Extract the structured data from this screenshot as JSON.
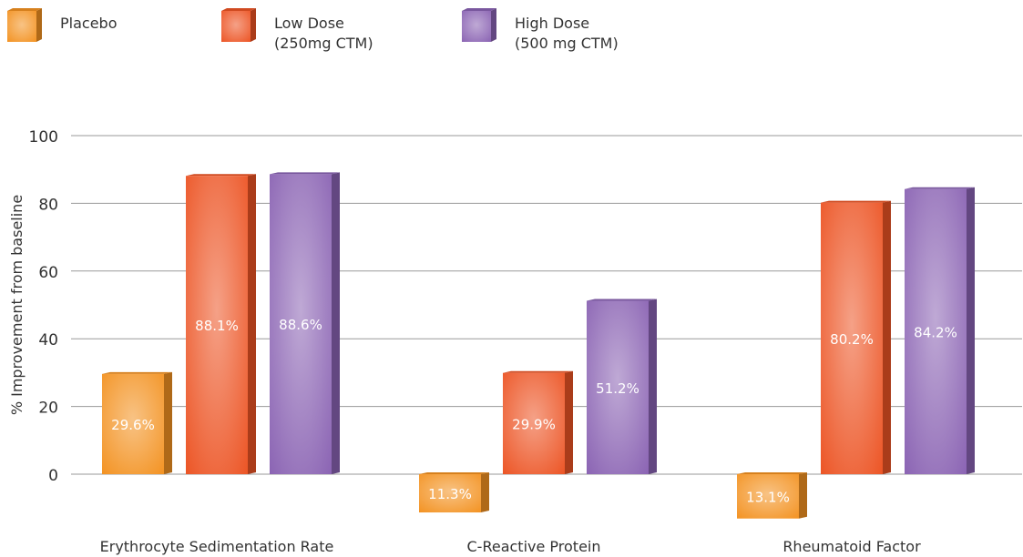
{
  "chart_data": {
    "type": "bar",
    "title": "",
    "ylabel": "% Improvement from baseline",
    "xlabel": "",
    "ylim": [
      -15,
      100
    ],
    "yticks": [
      0,
      20,
      40,
      60,
      80,
      100
    ],
    "grid": true,
    "legend_position": "top-left",
    "categories": [
      "Erythrocyte Sedimentation Rate",
      "C-Reactive Protein",
      "Rheumatoid Factor"
    ],
    "series": [
      {
        "name": "Placebo",
        "legend_lines": [
          "Placebo"
        ],
        "color": "#f39221",
        "values": [
          29.6,
          -11.3,
          -13.1
        ],
        "labels": [
          "29.6%",
          "11.3%",
          "13.1%"
        ]
      },
      {
        "name": "Low Dose (250mg CTM)",
        "legend_lines": [
          "Low Dose",
          "(250mg CTM)"
        ],
        "color": "#ec5424",
        "values": [
          88.1,
          29.9,
          80.2
        ],
        "labels": [
          "88.1%",
          "29.9%",
          "80.2%"
        ]
      },
      {
        "name": "High Dose (500 mg CTM)",
        "legend_lines": [
          "High Dose",
          "(500 mg CTM)"
        ],
        "color": "#8a63b3",
        "values": [
          88.6,
          51.2,
          84.2
        ],
        "labels": [
          "88.6%",
          "51.2%",
          "84.2%"
        ]
      }
    ]
  }
}
